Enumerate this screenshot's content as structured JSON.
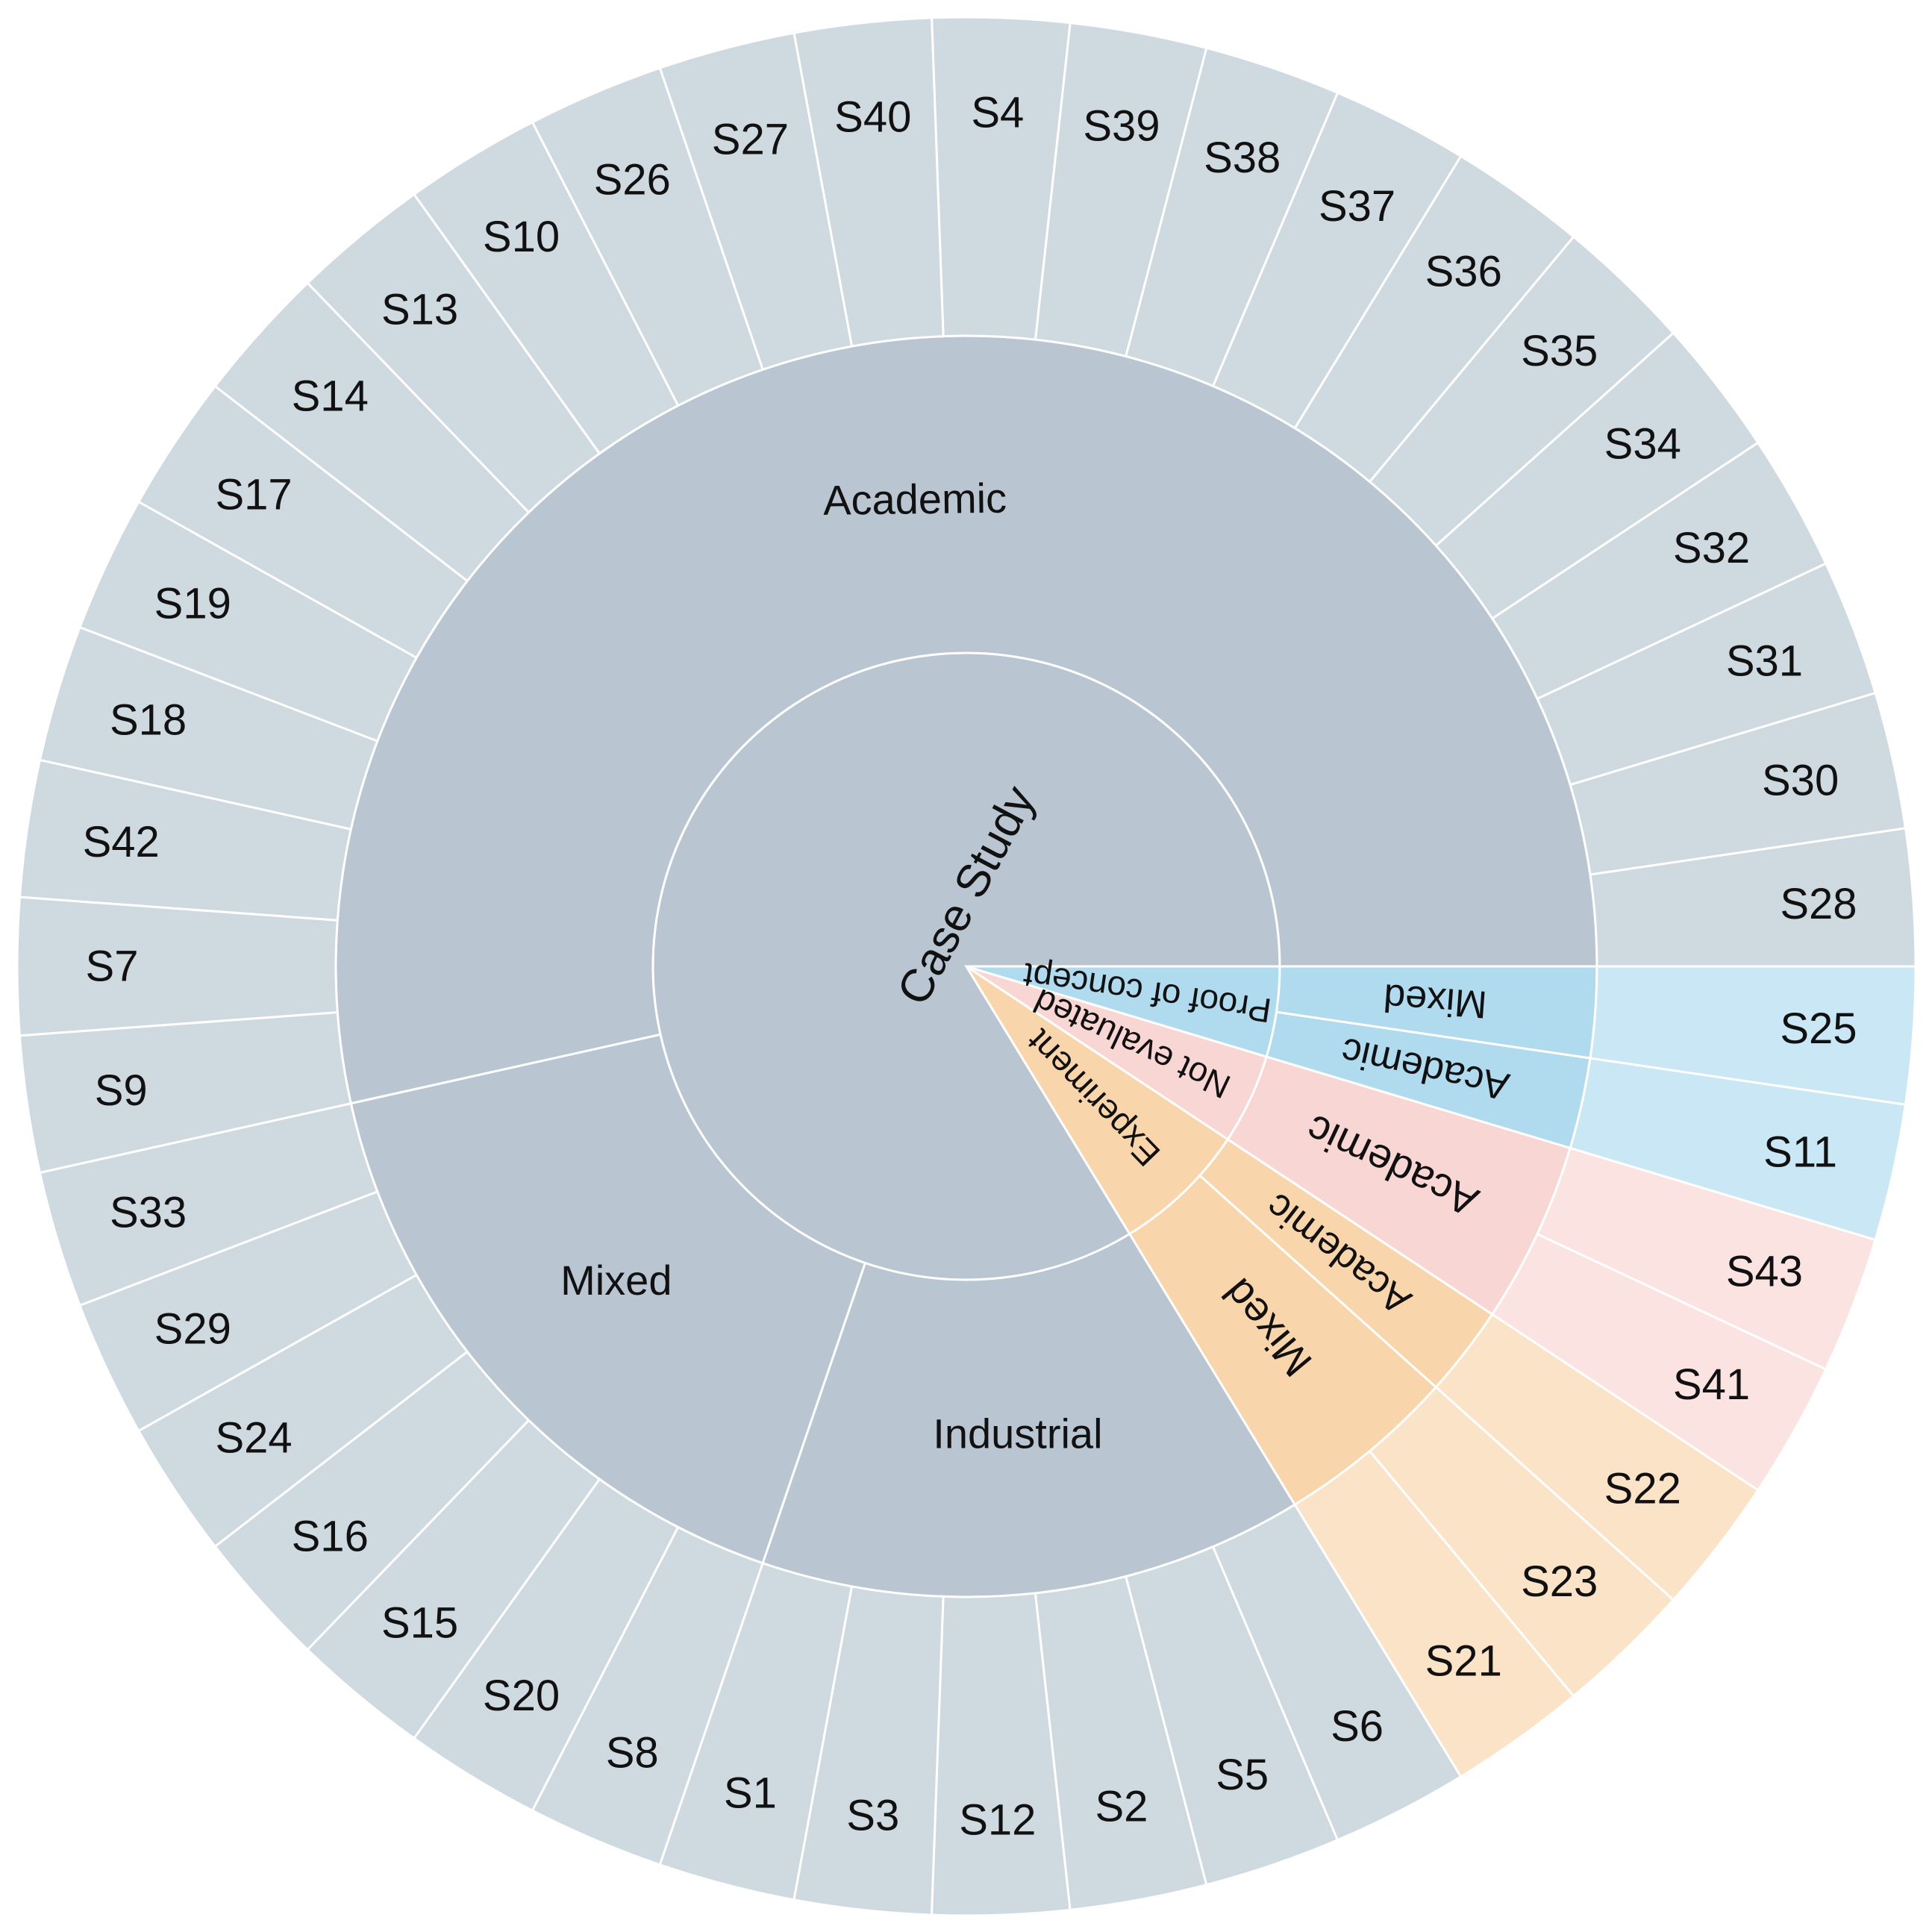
{
  "chart_data": {
    "type": "sunburst",
    "colors": {
      "Case Study": {
        "inner": "#b9c6d1",
        "outer": "#cfd9e0"
      },
      "Proof of concept": {
        "inner": "#b0dbef",
        "outer": "#c9e7f4"
      },
      "Not evaluated": {
        "inner": "#f8d6d3",
        "outer": "#fae3e1"
      },
      "Experiment": {
        "inner": "#f8d5aa",
        "outer": "#fae3c6"
      }
    },
    "root": [
      {
        "name": "Case Study",
        "label": "Case Study",
        "children": [
          {
            "name": "Academic",
            "label": "Academic",
            "leaves": [
              "S28",
              "S30",
              "S31",
              "S32",
              "S34",
              "S35",
              "S36",
              "S37",
              "S38",
              "S39",
              "S4",
              "S40",
              "S27",
              "S26",
              "S10",
              "S13",
              "S14",
              "S17",
              "S19",
              "S18",
              "S42",
              "S7",
              "S9"
            ]
          },
          {
            "name": "Mixed",
            "label": "Mixed",
            "leaves": [
              "S33",
              "S29",
              "S24",
              "S16",
              "S15",
              "S20",
              "S8"
            ]
          },
          {
            "name": "Industrial",
            "label": "Industrial",
            "leaves": [
              "S1",
              "S3",
              "S12",
              "S2",
              "S5",
              "S6"
            ]
          }
        ]
      },
      {
        "name": "Experiment",
        "label": "Experiment",
        "children": [
          {
            "name": "Mixed",
            "label": "Mixed",
            "leaves": [
              "S21",
              "S23"
            ]
          },
          {
            "name": "Academic",
            "label": "Academic",
            "leaves": [
              "S22"
            ]
          }
        ]
      },
      {
        "name": "Not evaluated",
        "label": "Not evaluated",
        "children": [
          {
            "name": "Academic",
            "label": "Academic",
            "leaves": [
              "S41",
              "S43"
            ]
          }
        ]
      },
      {
        "name": "Proof of concept",
        "label": "Proof of concept",
        "children": [
          {
            "name": "Academic",
            "label": "Academic",
            "leaves": [
              "S11"
            ]
          },
          {
            "name": "Mixed",
            "label": "Mixed",
            "leaves": [
              "S25"
            ]
          }
        ]
      }
    ]
  }
}
